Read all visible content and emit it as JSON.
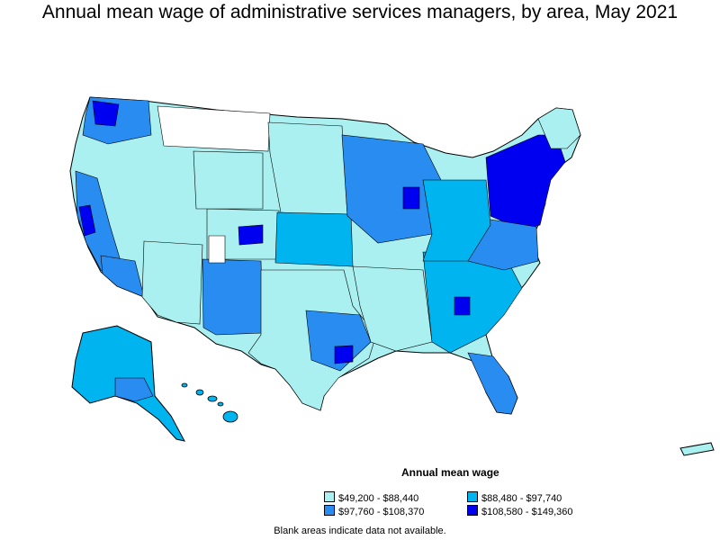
{
  "title": "Annual mean wage of administrative services managers, by area, May 2021",
  "colors": {
    "tier1": "#aaf0f0",
    "tier2": "#00b4f0",
    "tier3": "#288cf0",
    "tier4": "#0000f0",
    "blank": "#ffffff",
    "border": "#000000"
  },
  "legend": {
    "title": "Annual mean wage",
    "items": [
      {
        "label": "$49,200 - $88,440",
        "color": "#aaf0f0"
      },
      {
        "label": "$88,480 - $97,740",
        "color": "#00b4f0"
      },
      {
        "label": "$97,760 - $108,370",
        "color": "#288cf0"
      },
      {
        "label": "$108,580 - $149,360",
        "color": "#0000f0"
      }
    ]
  },
  "footnote": "Blank areas indicate data not available."
}
